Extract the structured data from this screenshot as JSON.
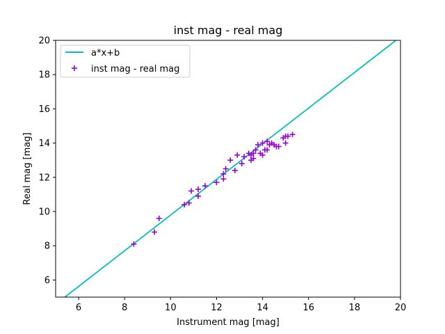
{
  "chart_data": {
    "type": "scatter",
    "title": "inst mag - real mag",
    "xlabel": "Instrument mag [mag]",
    "ylabel": "Real mag [mag]",
    "xlim": [
      5,
      20
    ],
    "ylim": [
      5,
      20
    ],
    "xticks": [
      6,
      8,
      10,
      12,
      14,
      16,
      18,
      20
    ],
    "yticks": [
      6,
      8,
      10,
      12,
      14,
      16,
      18,
      20
    ],
    "grid": false,
    "legend_position": "top-left",
    "series": [
      {
        "name": "a*x+b",
        "kind": "line",
        "color": "#00bfbf",
        "x": [
          5.4,
          19.8
        ],
        "y": [
          5.0,
          20.0
        ]
      },
      {
        "name": "inst mag - real mag",
        "kind": "scatter",
        "marker": "+",
        "color": "#9400d3",
        "x": [
          8.4,
          9.3,
          9.5,
          10.6,
          10.8,
          10.9,
          11.2,
          11.2,
          11.5,
          12.0,
          12.3,
          12.3,
          12.4,
          12.6,
          12.8,
          12.9,
          13.1,
          13.2,
          13.4,
          13.5,
          13.5,
          13.6,
          13.6,
          13.7,
          13.8,
          13.9,
          14.0,
          14.0,
          14.1,
          14.2,
          14.2,
          14.3,
          14.4,
          14.5,
          14.6,
          14.7,
          14.9,
          15.0,
          15.0,
          15.1,
          15.3
        ],
        "y": [
          8.1,
          8.8,
          9.6,
          10.4,
          10.5,
          11.2,
          11.3,
          10.9,
          11.5,
          11.7,
          11.9,
          12.2,
          12.5,
          13.0,
          12.4,
          13.3,
          12.8,
          13.2,
          13.4,
          13.0,
          13.3,
          13.1,
          13.4,
          13.6,
          13.9,
          13.4,
          13.3,
          14.0,
          13.6,
          14.1,
          13.6,
          13.9,
          14.0,
          13.9,
          13.8,
          13.8,
          14.3,
          14.0,
          14.4,
          14.4,
          14.5
        ]
      }
    ]
  }
}
